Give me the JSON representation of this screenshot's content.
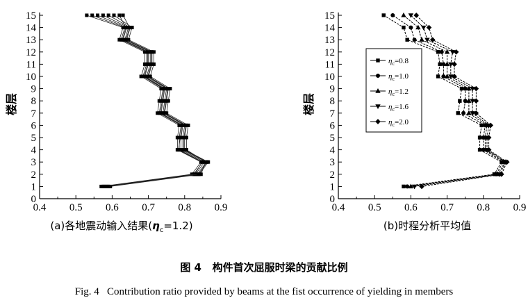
{
  "figure": {
    "title_cn": "图 4   构件首次屈服时梁的贡献比例",
    "title_en": "Fig. 4   Contribution ratio provided by beams at the fist occurrence of yielding in members"
  },
  "chart_data": [
    {
      "type": "line",
      "panel": "a",
      "caption_prefix": "(a)各地震动输入结果(",
      "caption_eta": "η",
      "caption_sub": "c",
      "caption_suffix": "=1.2)",
      "ylabel": "楼层",
      "xlabel": "",
      "xlim": [
        0.4,
        0.9
      ],
      "ylim": [
        0,
        15
      ],
      "xticks": [
        "0.4",
        "0.5",
        "0.6",
        "0.7",
        "0.8",
        "0.9"
      ],
      "yticks": [
        "0",
        "1",
        "2",
        "3",
        "4",
        "5",
        "6",
        "7",
        "8",
        "9",
        "10",
        "11",
        "12",
        "13",
        "14",
        "15"
      ],
      "grid": false,
      "legend": null,
      "y": [
        1,
        2,
        3,
        4,
        5,
        6,
        7,
        8,
        9,
        10,
        11,
        12,
        13,
        14,
        15
      ],
      "series": [
        {
          "x": [
            0.57,
            0.82,
            0.845,
            0.78,
            0.78,
            0.785,
            0.725,
            0.73,
            0.735,
            0.68,
            0.69,
            0.69,
            0.62,
            0.63,
            0.53
          ]
        },
        {
          "x": [
            0.575,
            0.825,
            0.85,
            0.785,
            0.785,
            0.79,
            0.73,
            0.735,
            0.74,
            0.685,
            0.695,
            0.695,
            0.625,
            0.635,
            0.545
          ]
        },
        {
          "x": [
            0.58,
            0.83,
            0.855,
            0.79,
            0.79,
            0.795,
            0.735,
            0.74,
            0.745,
            0.69,
            0.7,
            0.7,
            0.63,
            0.64,
            0.56
          ]
        },
        {
          "x": [
            0.585,
            0.835,
            0.86,
            0.795,
            0.795,
            0.8,
            0.74,
            0.745,
            0.75,
            0.695,
            0.705,
            0.705,
            0.635,
            0.645,
            0.575
          ]
        },
        {
          "x": [
            0.59,
            0.84,
            0.865,
            0.8,
            0.8,
            0.805,
            0.745,
            0.75,
            0.755,
            0.7,
            0.71,
            0.71,
            0.64,
            0.65,
            0.59
          ]
        },
        {
          "x": [
            0.595,
            0.845,
            0.858,
            0.805,
            0.805,
            0.81,
            0.75,
            0.755,
            0.76,
            0.705,
            0.715,
            0.715,
            0.645,
            0.655,
            0.605
          ]
        },
        {
          "x": [
            0.578,
            0.828,
            0.848,
            0.783,
            0.788,
            0.793,
            0.733,
            0.738,
            0.743,
            0.688,
            0.698,
            0.698,
            0.628,
            0.638,
            0.62
          ]
        },
        {
          "x": [
            0.588,
            0.838,
            0.862,
            0.798,
            0.798,
            0.803,
            0.743,
            0.748,
            0.753,
            0.698,
            0.708,
            0.708,
            0.638,
            0.648,
            0.63
          ]
        }
      ]
    },
    {
      "type": "line",
      "panel": "b",
      "caption": "(b)时程分析平均值",
      "ylabel": "楼层",
      "xlabel": "",
      "xlim": [
        0.4,
        0.9
      ],
      "ylim": [
        0,
        15
      ],
      "xticks": [
        "0.4",
        "0.5",
        "0.6",
        "0.7",
        "0.8",
        "0.9"
      ],
      "yticks": [
        "0",
        "1",
        "2",
        "3",
        "4",
        "5",
        "6",
        "7",
        "8",
        "9",
        "10",
        "11",
        "12",
        "13",
        "14",
        "15"
      ],
      "grid": false,
      "legend": "upper-left-inside",
      "y": [
        1,
        2,
        3,
        4,
        5,
        6,
        7,
        8,
        9,
        10,
        11,
        12,
        13,
        14,
        15
      ],
      "series": [
        {
          "name": "0.8",
          "marker": "square",
          "x": [
            0.58,
            0.83,
            0.85,
            0.79,
            0.79,
            0.795,
            0.73,
            0.735,
            0.74,
            0.675,
            0.68,
            0.675,
            0.59,
            0.58,
            0.525
          ]
        },
        {
          "name": "1.0",
          "marker": "circle",
          "x": [
            0.59,
            0.835,
            0.855,
            0.8,
            0.8,
            0.805,
            0.745,
            0.75,
            0.75,
            0.69,
            0.69,
            0.685,
            0.61,
            0.6,
            0.55
          ]
        },
        {
          "name": "1.2",
          "marker": "triangle-up",
          "x": [
            0.6,
            0.84,
            0.86,
            0.805,
            0.805,
            0.81,
            0.76,
            0.76,
            0.76,
            0.7,
            0.7,
            0.7,
            0.63,
            0.62,
            0.58
          ]
        },
        {
          "name": "1.6",
          "marker": "triangle-down",
          "x": [
            0.61,
            0.845,
            0.862,
            0.81,
            0.81,
            0.815,
            0.77,
            0.77,
            0.77,
            0.71,
            0.71,
            0.715,
            0.645,
            0.635,
            0.6
          ]
        },
        {
          "name": "2.0",
          "marker": "diamond",
          "x": [
            0.63,
            0.85,
            0.865,
            0.815,
            0.815,
            0.82,
            0.78,
            0.78,
            0.78,
            0.72,
            0.72,
            0.725,
            0.66,
            0.65,
            0.615
          ]
        }
      ],
      "legend_label_eta": "η",
      "legend_label_sub": "c",
      "legend_label_eq": "="
    }
  ]
}
